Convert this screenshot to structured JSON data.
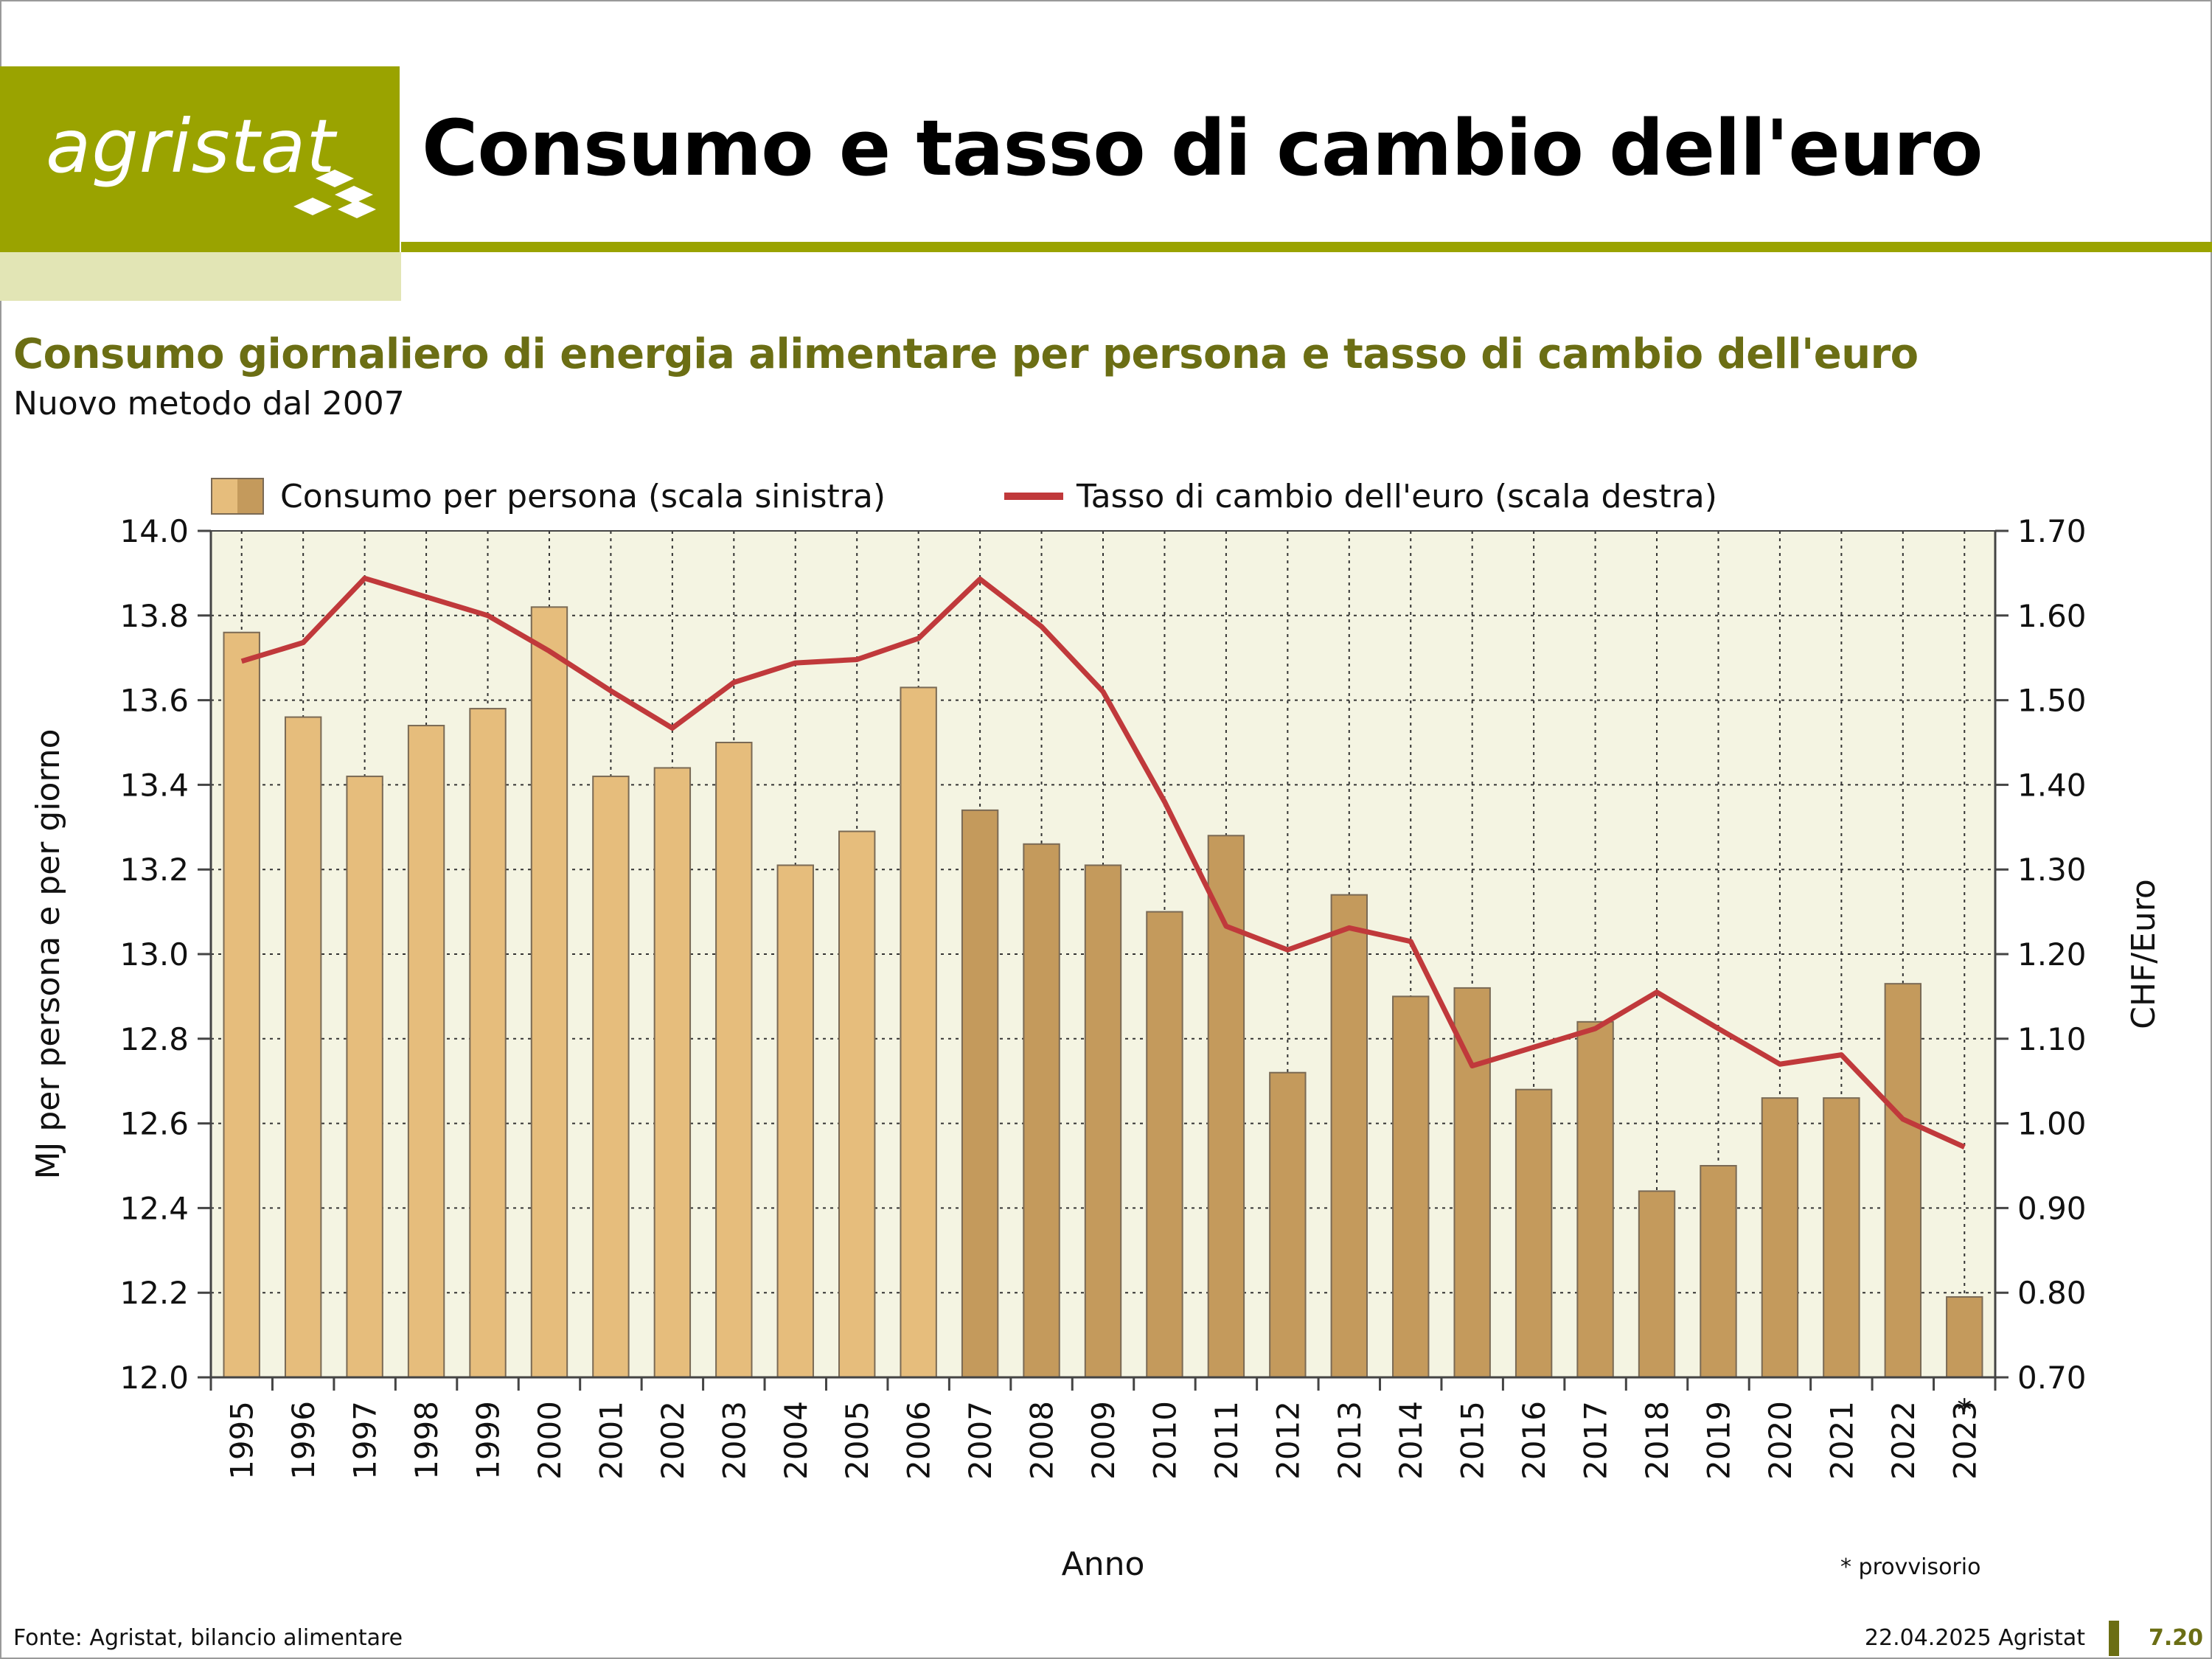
{
  "header": {
    "logo_text": "agristat",
    "title": "Consumo e tasso di cambio dell'euro"
  },
  "colors": {
    "brand": "#9aa300",
    "brand_light": "#e2e5b5",
    "title_green": "#6b6e14",
    "plot_bg": "#f4f4e2",
    "bar_old": "#e6bd7c",
    "bar_new": "#c49a5c",
    "bar_edge": "#7a6a55",
    "line": "#c0393b"
  },
  "chart_data": {
    "type": "bar",
    "title": "Consumo giornaliero di energia alimentare per persona e tasso di cambio dell'euro",
    "subtitle": "Nuovo metodo dal 2007",
    "xlabel": "Anno",
    "ylabel_left": "MJ per persona e per giorno",
    "ylabel_right": "CHF/Euro",
    "ylim_left": [
      12.0,
      14.0
    ],
    "yticks_left": [
      "12.0",
      "12.2",
      "12.4",
      "12.6",
      "12.8",
      "13.0",
      "13.2",
      "13.4",
      "13.6",
      "13.8",
      "14.0"
    ],
    "ylim_right": [
      0.7,
      1.7
    ],
    "yticks_right": [
      "0.70",
      "0.80",
      "0.90",
      "1.00",
      "1.10",
      "1.20",
      "1.30",
      "1.40",
      "1.50",
      "1.60",
      "1.70"
    ],
    "grid": true,
    "legend_position": "top",
    "categories": [
      "1995",
      "1996",
      "1997",
      "1998",
      "1999",
      "2000",
      "2001",
      "2002",
      "2003",
      "2004",
      "2005",
      "2006",
      "2007",
      "2008",
      "2009",
      "2010",
      "2011",
      "2012",
      "2013",
      "2014",
      "2015",
      "2016",
      "2017",
      "2018",
      "2019",
      "2020",
      "2021",
      "2022",
      "2023"
    ],
    "provisional_marker": "*",
    "series": [
      {
        "name": "Consumo per persona (scala sinistra)",
        "type": "bar",
        "axis": "left",
        "new_method_from": "2007",
        "values": [
          13.76,
          13.56,
          13.42,
          13.54,
          13.58,
          13.82,
          13.42,
          13.44,
          13.5,
          13.21,
          13.29,
          13.63,
          13.34,
          13.26,
          13.21,
          13.1,
          13.28,
          12.72,
          13.14,
          12.9,
          12.92,
          12.68,
          12.84,
          12.44,
          12.5,
          12.66,
          12.66,
          12.93,
          12.19
        ]
      },
      {
        "name": "Tasso di cambio dell'euro (scala destra)",
        "type": "line",
        "axis": "right",
        "values": [
          1.546,
          1.568,
          1.644,
          1.622,
          1.6,
          1.558,
          1.511,
          1.467,
          1.521,
          1.544,
          1.548,
          1.573,
          1.643,
          1.587,
          1.51,
          1.38,
          1.233,
          1.205,
          1.231,
          1.215,
          1.068,
          1.09,
          1.112,
          1.155,
          1.112,
          1.07,
          1.081,
          1.005,
          0.972
        ]
      }
    ]
  },
  "footer": {
    "note": "* provvisorio",
    "source": "Fonte: Agristat, bilancio alimentare",
    "date": "22.04.2025 Agristat",
    "page": "7.20"
  }
}
